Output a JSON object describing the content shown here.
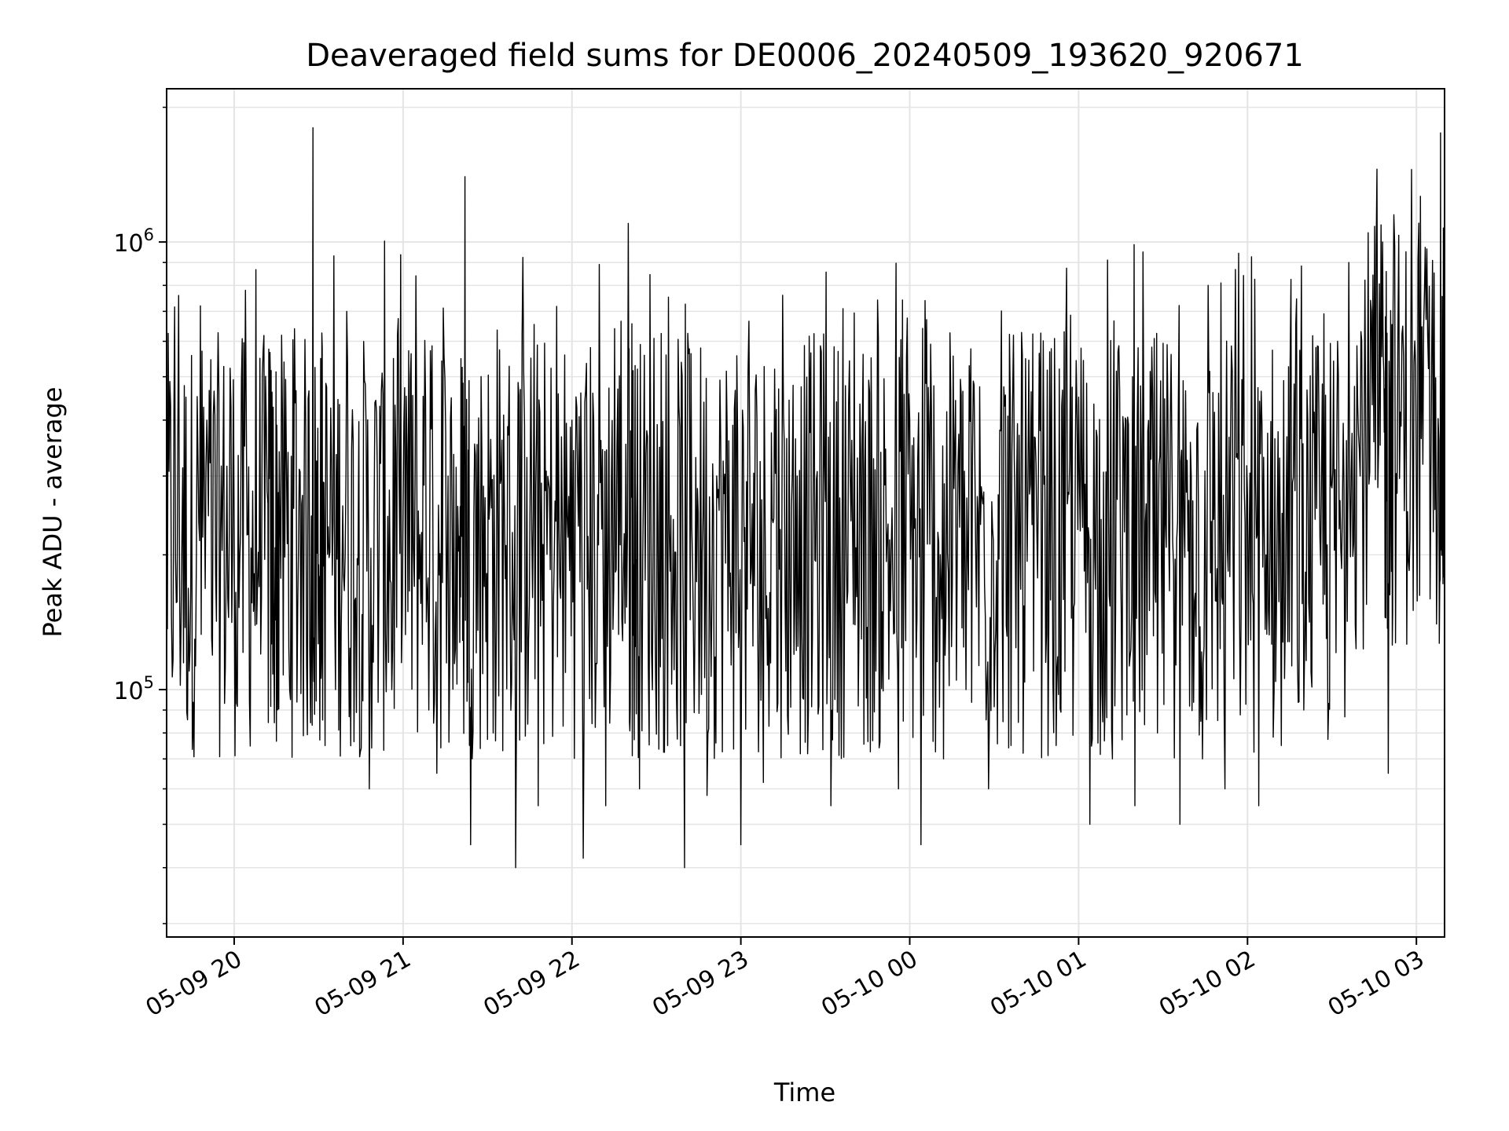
{
  "chart_data": {
    "type": "line",
    "title": "Deaveraged field sums for DE0006_20240509_193620_920671",
    "xlabel": "Time",
    "ylabel": "Peak ADU - average",
    "y_scale": "log",
    "grid": true,
    "grid_minor": true,
    "line_color": "#000000",
    "xlim": [
      "2024-05-09 19:36",
      "2024-05-10 03:10"
    ],
    "ylim": [
      28000,
      2200000
    ],
    "x_ticks": [
      {
        "value": "2024-05-09 20:00",
        "label": "05-09 20"
      },
      {
        "value": "2024-05-09 21:00",
        "label": "05-09 21"
      },
      {
        "value": "2024-05-09 22:00",
        "label": "05-09 22"
      },
      {
        "value": "2024-05-09 23:00",
        "label": "05-09 23"
      },
      {
        "value": "2024-05-10 00:00",
        "label": "05-10 00"
      },
      {
        "value": "2024-05-10 01:00",
        "label": "05-10 01"
      },
      {
        "value": "2024-05-10 02:00",
        "label": "05-10 02"
      },
      {
        "value": "2024-05-10 03:00",
        "label": "05-10 03"
      }
    ],
    "y_ticks": [
      {
        "value": 100000,
        "base": "10",
        "exp": "5"
      },
      {
        "value": 1000000,
        "base": "10",
        "exp": "6"
      }
    ],
    "series": [
      {
        "x": [
          "2024-05-09 19:36",
          "2024-05-09 19:40",
          "2024-05-09 19:44",
          "2024-05-09 19:48",
          "2024-05-09 19:52",
          "2024-05-09 19:56",
          "2024-05-09 20:00",
          "2024-05-09 20:04",
          "2024-05-09 20:08",
          "2024-05-09 20:12",
          "2024-05-09 20:14",
          "2024-05-09 20:16",
          "2024-05-09 20:20",
          "2024-05-09 20:24",
          "2024-05-09 20:28",
          "2024-05-09 20:30",
          "2024-05-09 20:32",
          "2024-05-09 20:36",
          "2024-05-09 20:40",
          "2024-05-09 20:44",
          "2024-05-09 20:48",
          "2024-05-09 20:52",
          "2024-05-09 20:56",
          "2024-05-09 21:00",
          "2024-05-09 21:04",
          "2024-05-09 21:08",
          "2024-05-09 21:12",
          "2024-05-09 21:16",
          "2024-05-09 21:20",
          "2024-05-09 21:22",
          "2024-05-09 21:24",
          "2024-05-09 21:28",
          "2024-05-09 21:32",
          "2024-05-09 21:36",
          "2024-05-09 21:40",
          "2024-05-09 21:44",
          "2024-05-09 21:48",
          "2024-05-09 21:52",
          "2024-05-09 21:56",
          "2024-05-09 22:00",
          "2024-05-09 22:04",
          "2024-05-09 22:08",
          "2024-05-09 22:12",
          "2024-05-09 22:16",
          "2024-05-09 22:20",
          "2024-05-09 22:22",
          "2024-05-09 22:24",
          "2024-05-09 22:28",
          "2024-05-09 22:32",
          "2024-05-09 22:36",
          "2024-05-09 22:40",
          "2024-05-09 22:44",
          "2024-05-09 22:48",
          "2024-05-09 22:52",
          "2024-05-09 22:56",
          "2024-05-09 23:00",
          "2024-05-09 23:04",
          "2024-05-09 23:08",
          "2024-05-09 23:12",
          "2024-05-09 23:16",
          "2024-05-09 23:20",
          "2024-05-09 23:24",
          "2024-05-09 23:28",
          "2024-05-09 23:32",
          "2024-05-09 23:36",
          "2024-05-09 23:40",
          "2024-05-09 23:44",
          "2024-05-09 23:48",
          "2024-05-09 23:52",
          "2024-05-09 23:56",
          "2024-05-10 00:00",
          "2024-05-10 00:04",
          "2024-05-10 00:08",
          "2024-05-10 00:12",
          "2024-05-10 00:16",
          "2024-05-10 00:20",
          "2024-05-10 00:24",
          "2024-05-10 00:28",
          "2024-05-10 00:32",
          "2024-05-10 00:36",
          "2024-05-10 00:40",
          "2024-05-10 00:44",
          "2024-05-10 00:48",
          "2024-05-10 00:52",
          "2024-05-10 00:56",
          "2024-05-10 01:00",
          "2024-05-10 01:04",
          "2024-05-10 01:08",
          "2024-05-10 01:12",
          "2024-05-10 01:16",
          "2024-05-10 01:20",
          "2024-05-10 01:24",
          "2024-05-10 01:28",
          "2024-05-10 01:32",
          "2024-05-10 01:36",
          "2024-05-10 01:40",
          "2024-05-10 01:44",
          "2024-05-10 01:48",
          "2024-05-10 01:52",
          "2024-05-10 01:56",
          "2024-05-10 02:00",
          "2024-05-10 02:04",
          "2024-05-10 02:08",
          "2024-05-10 02:12",
          "2024-05-10 02:16",
          "2024-05-10 02:20",
          "2024-05-10 02:24",
          "2024-05-10 02:28",
          "2024-05-10 02:32",
          "2024-05-10 02:36",
          "2024-05-10 02:40",
          "2024-05-10 02:44",
          "2024-05-10 02:48",
          "2024-05-10 02:50",
          "2024-05-10 02:52",
          "2024-05-10 02:56",
          "2024-05-10 03:00",
          "2024-05-10 03:04",
          "2024-05-10 03:08",
          "2024-05-10 03:10"
        ],
        "y": [
          230000,
          380000,
          110000,
          720000,
          130000,
          290000,
          210000,
          780000,
          140000,
          260000,
          170000,
          340000,
          95000,
          260000,
          1800000,
          190000,
          240000,
          100000,
          700000,
          190000,
          60000,
          320000,
          100000,
          250000,
          170000,
          440000,
          65000,
          300000,
          220000,
          1400000,
          45000,
          340000,
          80000,
          260000,
          40000,
          330000,
          55000,
          280000,
          160000,
          400000,
          42000,
          210000,
          55000,
          350000,
          1100000,
          190000,
          60000,
          300000,
          130000,
          240000,
          40000,
          330000,
          58000,
          280000,
          170000,
          45000,
          260000,
          62000,
          520000,
          110000,
          300000,
          90000,
          230000,
          55000,
          260000,
          140000,
          310000,
          110000,
          220000,
          60000,
          400000,
          45000,
          210000,
          70000,
          350000,
          100000,
          270000,
          60000,
          380000,
          75000,
          560000,
          110000,
          300000,
          75000,
          260000,
          450000,
          50000,
          240000,
          70000,
          380000,
          55000,
          260000,
          80000,
          220000,
          50000,
          300000,
          70000,
          240000,
          60000,
          330000,
          270000,
          55000,
          210000,
          75000,
          290000,
          90000,
          240000,
          130000,
          600000,
          900000,
          300000,
          700000,
          1000000,
          65000,
          1150000,
          380000,
          280000,
          620000,
          360000,
          700000
        ],
        "x_full": "series drawn densely between listed points"
      }
    ]
  }
}
